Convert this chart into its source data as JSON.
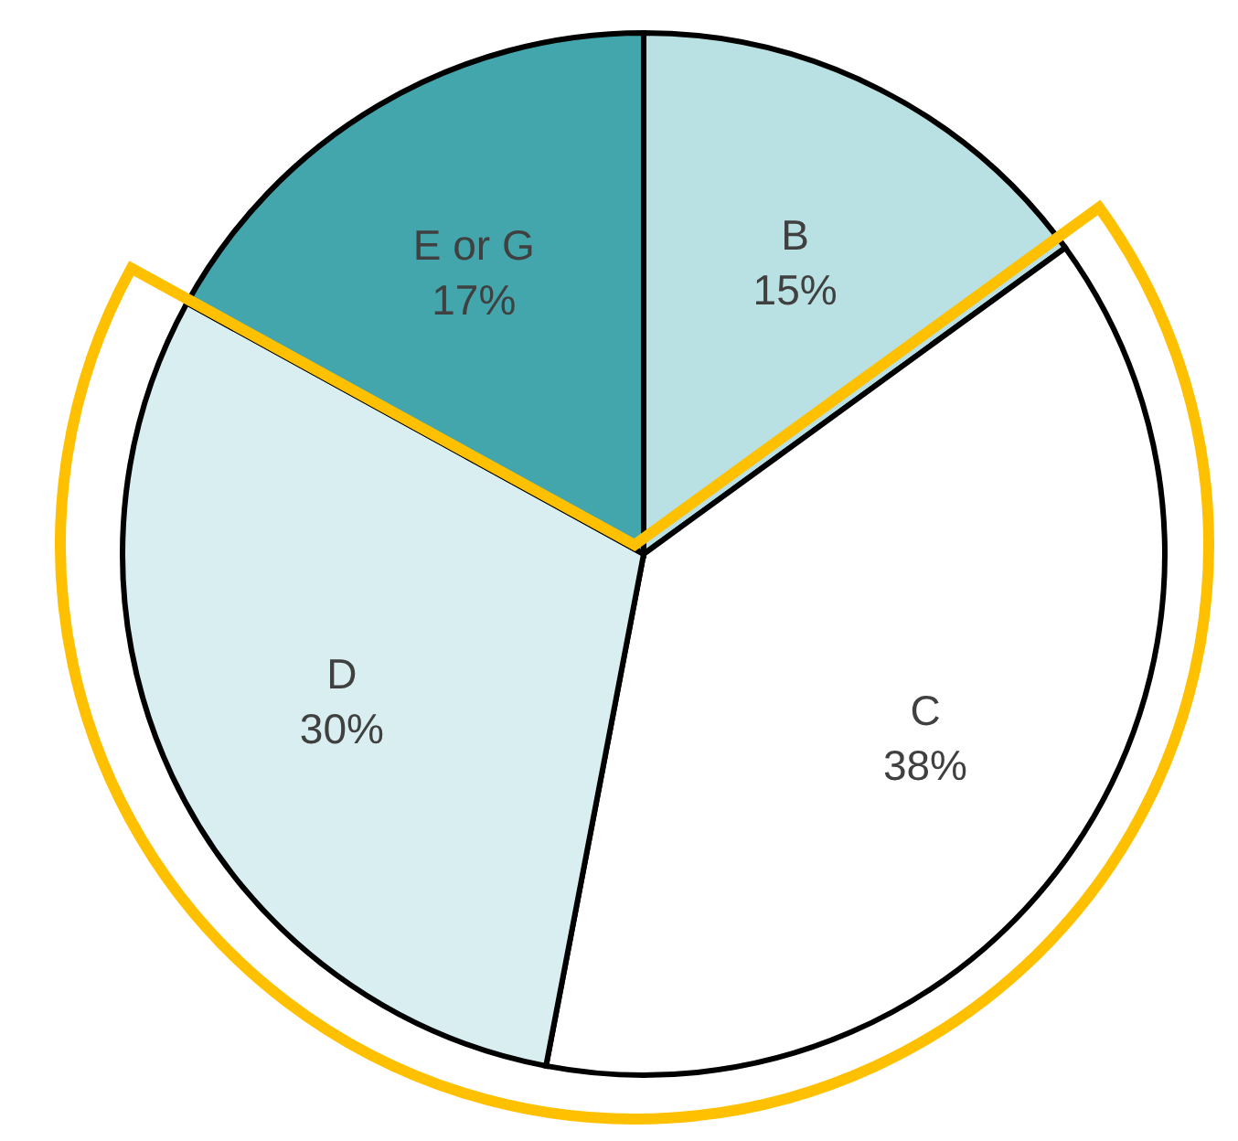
{
  "chart_data": {
    "type": "pie",
    "categories": [
      "B",
      "C",
      "D",
      "E or G"
    ],
    "values": [
      15,
      38,
      30,
      17
    ],
    "colors": [
      "#b9e0e2",
      "#ffffff",
      "#d9eef0",
      "#44a6ad"
    ],
    "value_labels": [
      "15%",
      "38%",
      "30%",
      "17%"
    ]
  }
}
